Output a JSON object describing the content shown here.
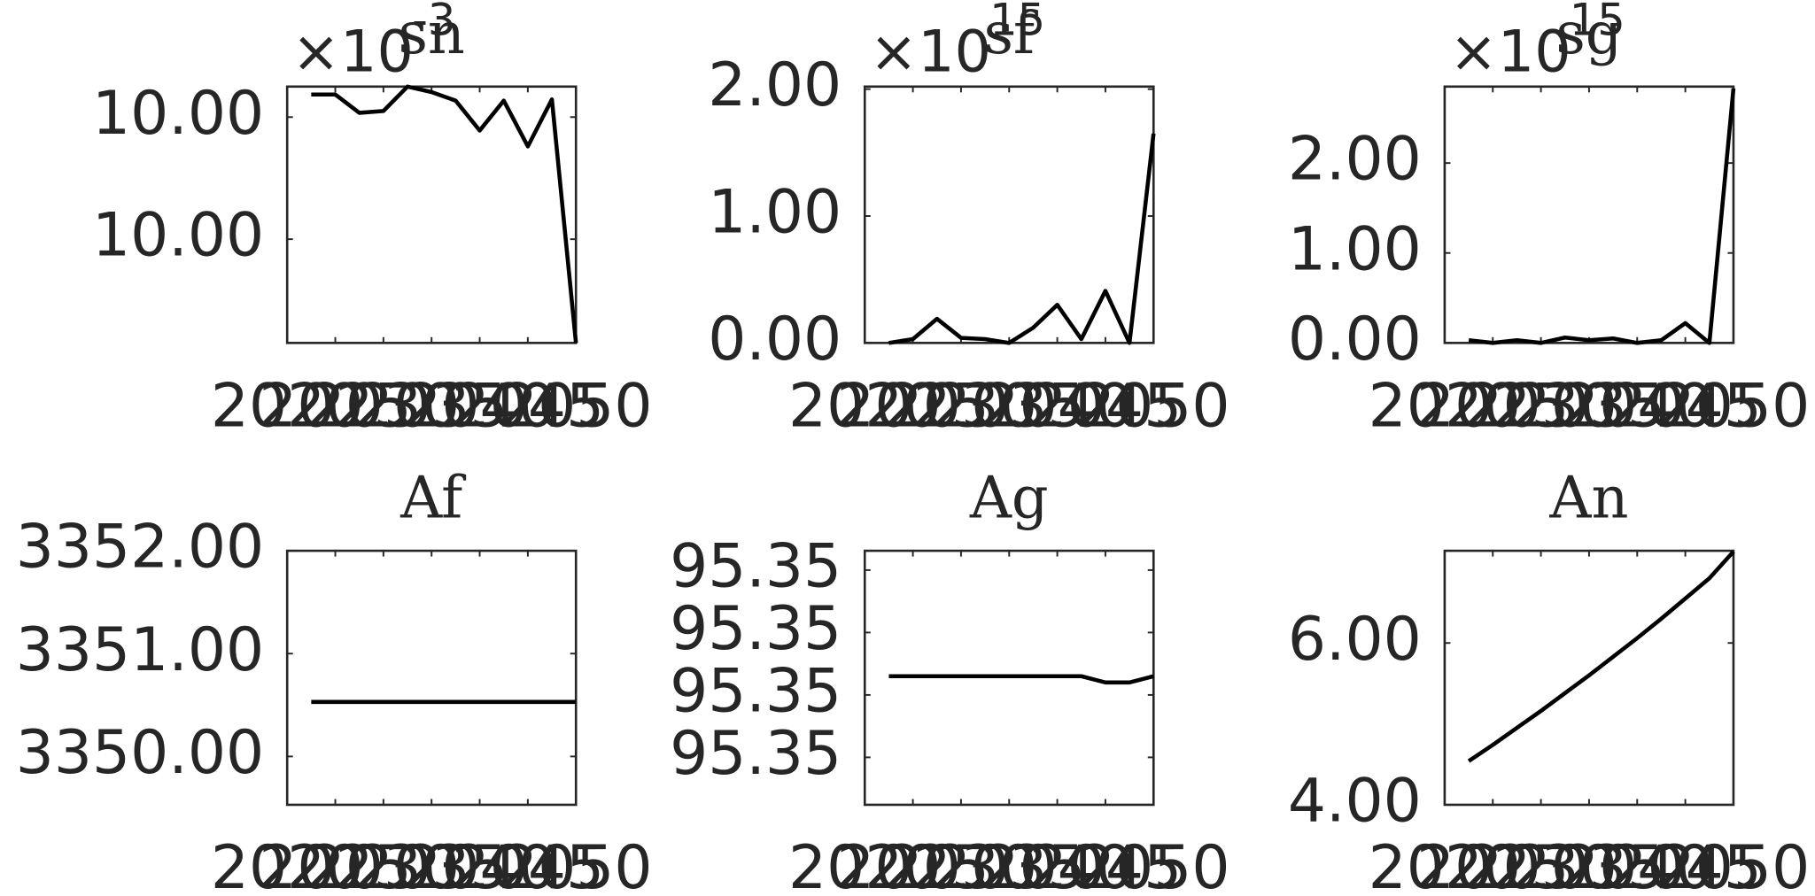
{
  "chart_data": [
    {
      "type": "line",
      "title": "sn",
      "exponent_base": "×10",
      "exponent": "-3",
      "color": "#000000",
      "x": [
        2022.5,
        2025,
        2027.5,
        2030,
        2032.5,
        2035,
        2037.5,
        2040,
        2042.5,
        2045,
        2047.5,
        2050
      ],
      "values": [
        10.00437,
        10.00437,
        10.00407,
        10.0041,
        10.0045,
        10.00441,
        10.00427,
        10.00378,
        10.00427,
        10.00352,
        10.00429,
        10.0003
      ],
      "xlim": [
        2020,
        2050
      ],
      "xticks": [
        2020,
        2025,
        2030,
        2035,
        2040,
        2045,
        2050
      ],
      "ylim": [
        10.0003,
        10.0045
      ],
      "yticks": [
        {
          "value": 10.002,
          "label": "10.00"
        },
        {
          "value": 10.004,
          "label": "10.00"
        }
      ]
    },
    {
      "type": "line",
      "title": "sf",
      "exponent_base": "×10",
      "exponent": "15",
      "color": "#000000",
      "x": [
        2022.5,
        2025,
        2027.5,
        2030,
        2032.5,
        2035,
        2037.5,
        2040,
        2042.5,
        2045,
        2047.5,
        2050
      ],
      "values": [
        0,
        0.03,
        0.19,
        0.04,
        0.03,
        0,
        0.12,
        0.3,
        0.03,
        0.41,
        0,
        1.65
      ],
      "xlim": [
        2020,
        2050
      ],
      "xticks": [
        2020,
        2025,
        2030,
        2035,
        2040,
        2045,
        2050
      ],
      "ylim": [
        0,
        2.02
      ],
      "yticks": [
        {
          "value": 0,
          "label": "0.00"
        },
        {
          "value": 1,
          "label": "1.00"
        },
        {
          "value": 2,
          "label": "2.00"
        }
      ]
    },
    {
      "type": "line",
      "title": "sg",
      "exponent_base": "×10",
      "exponent": "15",
      "color": "#000000",
      "x": [
        2022.5,
        2025,
        2027.5,
        2030,
        2032.5,
        2035,
        2037.5,
        2040,
        2042.5,
        2045,
        2047.5,
        2050
      ],
      "values": [
        0.03,
        0,
        0.03,
        0,
        0.06,
        0.03,
        0.05,
        0,
        0.03,
        0.22,
        0,
        2.83
      ],
      "xlim": [
        2020,
        2050
      ],
      "xticks": [
        2020,
        2025,
        2030,
        2035,
        2040,
        2045,
        2050
      ],
      "ylim": [
        0,
        2.85
      ],
      "yticks": [
        {
          "value": 0,
          "label": "0.00"
        },
        {
          "value": 1,
          "label": "1.00"
        },
        {
          "value": 2,
          "label": "2.00"
        }
      ]
    },
    {
      "type": "line",
      "title": "Af",
      "color": "#000000",
      "x": [
        2022.5,
        2025,
        2027.5,
        2030,
        2032.5,
        2035,
        2037.5,
        2040,
        2042.5,
        2045,
        2047.5,
        2050
      ],
      "values": [
        3350.53,
        3350.53,
        3350.53,
        3350.53,
        3350.53,
        3350.53,
        3350.53,
        3350.53,
        3350.53,
        3350.53,
        3350.53,
        3350.53
      ],
      "xlim": [
        2020,
        2050
      ],
      "xticks": [
        2020,
        2025,
        2030,
        2035,
        2040,
        2045,
        2050
      ],
      "ylim": [
        3349.53,
        3352
      ],
      "yticks": [
        {
          "value": 3350,
          "label": "3350.00"
        },
        {
          "value": 3351,
          "label": "3351.00"
        },
        {
          "value": 3352,
          "label": "3352.00"
        }
      ]
    },
    {
      "type": "line",
      "title": "Ag",
      "color": "#000000",
      "x": [
        2022.5,
        2025,
        2027.5,
        2030,
        2032.5,
        2035,
        2037.5,
        2040,
        2042.5,
        2045,
        2047.5,
        2050
      ],
      "values": [
        95.35013,
        95.35013,
        95.35013,
        95.35013,
        95.35013,
        95.35013,
        95.35013,
        95.35013,
        95.35013,
        95.35012,
        95.35012,
        95.35013
      ],
      "xlim": [
        2020,
        2050
      ],
      "xticks": [
        2020,
        2025,
        2030,
        2035,
        2040,
        2045,
        2050
      ],
      "ylim": [
        95.349924,
        95.350331
      ],
      "yticks": [
        {
          "value": 95.35,
          "label": "95.35"
        },
        {
          "value": 95.3501,
          "label": "95.35"
        },
        {
          "value": 95.3502,
          "label": "95.35"
        },
        {
          "value": 95.3503,
          "label": "95.35"
        }
      ]
    },
    {
      "type": "line",
      "title": "An",
      "color": "#000000",
      "x": [
        2022.5,
        2025,
        2027.5,
        2030,
        2032.5,
        2035,
        2037.5,
        2040,
        2042.5,
        2045,
        2047.5,
        2050
      ],
      "values": [
        4.54,
        4.74,
        4.95,
        5.16,
        5.38,
        5.6,
        5.83,
        6.06,
        6.3,
        6.55,
        6.8,
        7.13
      ],
      "xlim": [
        2020,
        2050
      ],
      "xticks": [
        2020,
        2025,
        2030,
        2035,
        2040,
        2045,
        2050
      ],
      "ylim": [
        4,
        7.14
      ],
      "yticks": [
        {
          "value": 4,
          "label": "4.00"
        },
        {
          "value": 6,
          "label": "6.00"
        }
      ]
    }
  ]
}
